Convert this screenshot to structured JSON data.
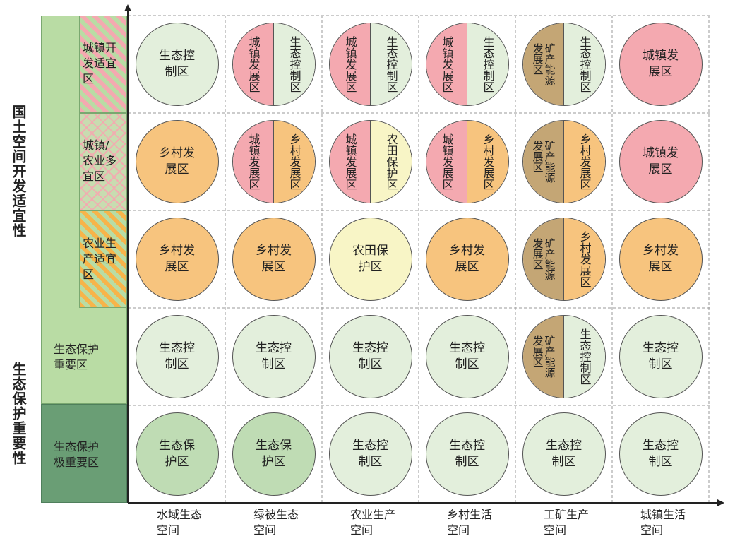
{
  "colors": {
    "ecology_control": "#e3efdc",
    "ecology_protect": "#bfdcb4",
    "town_dev": "#f4a9b0",
    "rural_dev": "#f7c47e",
    "farmland": "#f8f5c6",
    "mining": "#c4a675",
    "sidebar_light": "#b9dca4",
    "sidebar_dark": "#6a9e75"
  },
  "y_axis": {
    "upper_title": "国土空间开发适宜性",
    "lower_title": "生态保护重要性"
  },
  "rows": [
    {
      "label": "城镇开发适宜区",
      "label_lines": [
        "城镇开",
        "发适宜",
        "区"
      ]
    },
    {
      "label": "城镇/农业多宜区",
      "label_lines": [
        "城镇/",
        "农业多",
        "宜区"
      ]
    },
    {
      "label": "农业生产适宜区",
      "label_lines": [
        "农业生",
        "产适宜",
        "区"
      ]
    },
    {
      "label": "生态保护重要区",
      "label_lines": [
        "生态保护",
        "重要区"
      ]
    },
    {
      "label": "生态保护极重要区",
      "label_lines": [
        "生态保护",
        "极重要区"
      ]
    }
  ],
  "columns": [
    {
      "label_lines": [
        "水域生态",
        "空间"
      ]
    },
    {
      "label_lines": [
        "绿被生态",
        "空间"
      ]
    },
    {
      "label_lines": [
        "农业生产",
        "空间"
      ]
    },
    {
      "label_lines": [
        "乡村生活",
        "空间"
      ]
    },
    {
      "label_lines": [
        "工矿生产",
        "空间"
      ]
    },
    {
      "label_lines": [
        "城镇生活",
        "空间"
      ]
    }
  ],
  "cells": [
    [
      {
        "type": "full",
        "text": "生态控制区",
        "color": "ecology_control"
      },
      {
        "type": "split",
        "left": {
          "text": "城镇发展区",
          "color": "town_dev"
        },
        "right": {
          "text": "生态控制区",
          "color": "ecology_control"
        }
      },
      {
        "type": "split",
        "left": {
          "text": "城镇发展区",
          "color": "town_dev"
        },
        "right": {
          "text": "生态控制区",
          "color": "ecology_control"
        }
      },
      {
        "type": "split",
        "left": {
          "text": "城镇发展区",
          "color": "town_dev"
        },
        "right": {
          "text": "生态控制区",
          "color": "ecology_control"
        }
      },
      {
        "type": "split",
        "left": {
          "text": "矿产能源发展区",
          "color": "mining"
        },
        "right": {
          "text": "生态控制区",
          "color": "ecology_control"
        }
      },
      {
        "type": "full",
        "text": "城镇发展区",
        "color": "town_dev"
      }
    ],
    [
      {
        "type": "full",
        "text": "乡村发展区",
        "color": "rural_dev"
      },
      {
        "type": "split",
        "left": {
          "text": "城镇发展区",
          "color": "town_dev"
        },
        "right": {
          "text": "乡村发展区",
          "color": "rural_dev"
        }
      },
      {
        "type": "split",
        "left": {
          "text": "城镇发展区",
          "color": "town_dev"
        },
        "right": {
          "text": "农田保护区",
          "color": "farmland"
        }
      },
      {
        "type": "split",
        "left": {
          "text": "城镇发展区",
          "color": "town_dev"
        },
        "right": {
          "text": "乡村发展区",
          "color": "rural_dev"
        }
      },
      {
        "type": "split",
        "left": {
          "text": "矿产能源发展区",
          "color": "mining"
        },
        "right": {
          "text": "乡村发展区",
          "color": "rural_dev"
        }
      },
      {
        "type": "full",
        "text": "城镇发展区",
        "color": "town_dev"
      }
    ],
    [
      {
        "type": "full",
        "text": "乡村发展区",
        "color": "rural_dev"
      },
      {
        "type": "full",
        "text": "乡村发展区",
        "color": "rural_dev"
      },
      {
        "type": "full",
        "text": "农田保护区",
        "color": "farmland"
      },
      {
        "type": "full",
        "text": "乡村发展区",
        "color": "rural_dev"
      },
      {
        "type": "split",
        "left": {
          "text": "矿产能源发展区",
          "color": "mining"
        },
        "right": {
          "text": "乡村发展区",
          "color": "rural_dev"
        }
      },
      {
        "type": "full",
        "text": "乡村发展区",
        "color": "rural_dev"
      }
    ],
    [
      {
        "type": "full",
        "text": "生态控制区",
        "color": "ecology_control"
      },
      {
        "type": "full",
        "text": "生态控制区",
        "color": "ecology_control"
      },
      {
        "type": "full",
        "text": "生态控制区",
        "color": "ecology_control"
      },
      {
        "type": "full",
        "text": "生态控制区",
        "color": "ecology_control"
      },
      {
        "type": "split",
        "left": {
          "text": "矿产能源发展区",
          "color": "mining"
        },
        "right": {
          "text": "生态控制区",
          "color": "ecology_control"
        }
      },
      {
        "type": "full",
        "text": "生态控制区",
        "color": "ecology_control"
      }
    ],
    [
      {
        "type": "full",
        "text": "生态保护区",
        "color": "ecology_protect"
      },
      {
        "type": "full",
        "text": "生态保护区",
        "color": "ecology_protect"
      },
      {
        "type": "full",
        "text": "生态控制区",
        "color": "ecology_control"
      },
      {
        "type": "full",
        "text": "生态控制区",
        "color": "ecology_control"
      },
      {
        "type": "full",
        "text": "生态控制区",
        "color": "ecology_control"
      },
      {
        "type": "full",
        "text": "生态控制区",
        "color": "ecology_control"
      }
    ]
  ]
}
